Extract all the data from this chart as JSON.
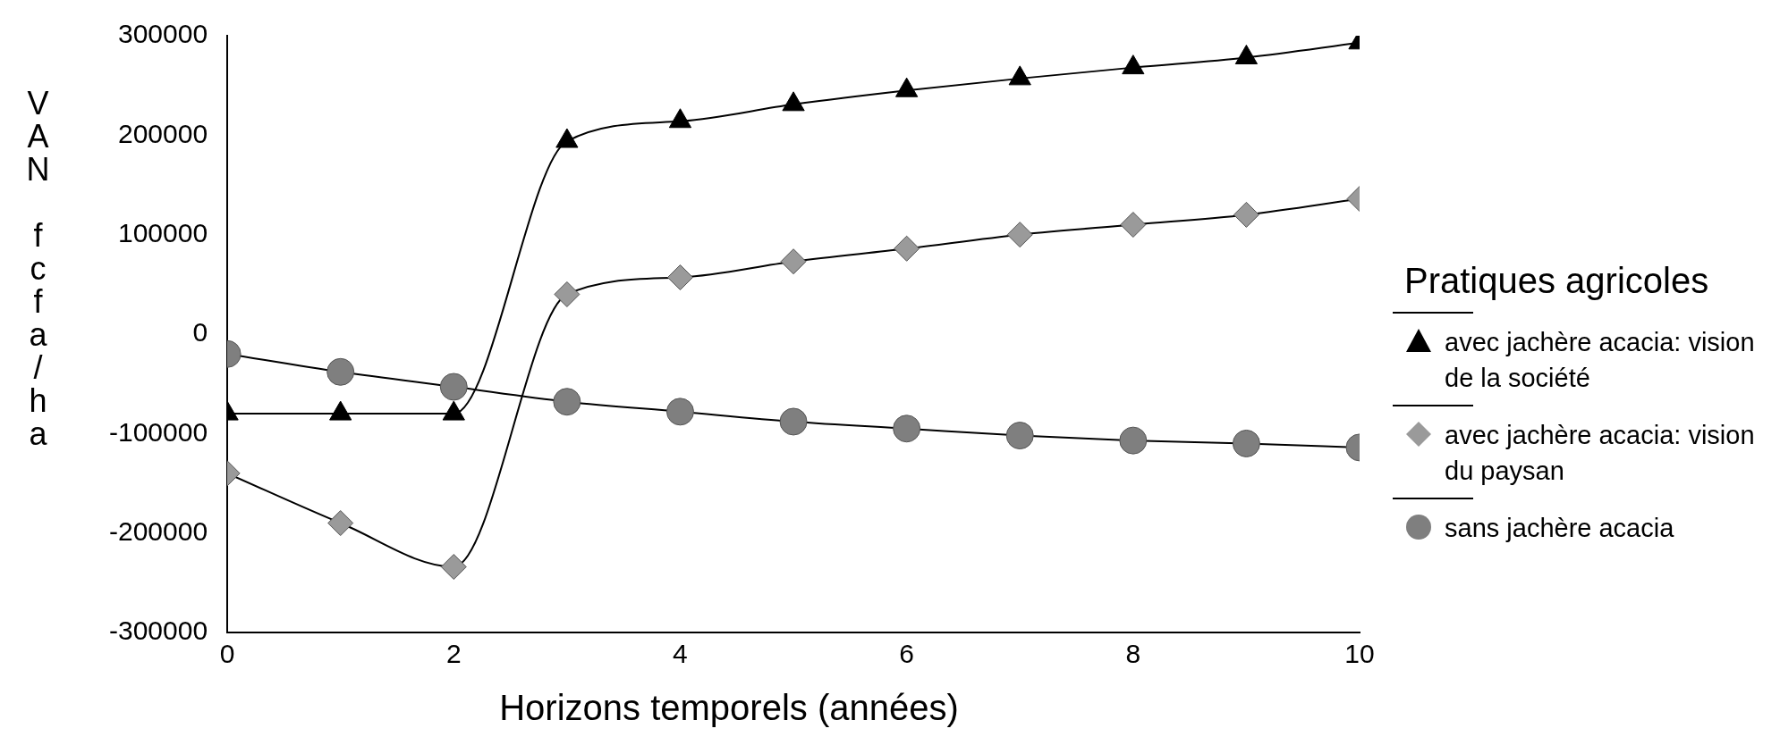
{
  "chart_data": {
    "type": "line",
    "xlabel": "Horizons temporels (années)",
    "ylabel": "VAN fcfa/ha",
    "legend_title": "Pratiques agricoles",
    "legend": "right",
    "grid": false,
    "x": [
      0,
      1,
      2,
      3,
      4,
      5,
      6,
      7,
      8,
      9,
      10
    ],
    "xlim": [
      0,
      10
    ],
    "xticks": [
      0,
      2,
      4,
      6,
      8,
      10
    ],
    "ylim": [
      -300000,
      300000
    ],
    "yticks": [
      -300000,
      -200000,
      -100000,
      0,
      100000,
      200000,
      300000
    ],
    "series": [
      {
        "name": "avec jachère acacia: vision de la société",
        "color": "#000000",
        "marker": "triangle",
        "values": [
          -80000,
          -80000,
          -80000,
          194000,
          214000,
          231000,
          245000,
          257000,
          268000,
          278000,
          293000
        ]
      },
      {
        "name": "avec jachère acacia: vision du paysan",
        "color": "#9a9a9a",
        "marker": "diamond",
        "values": [
          -140000,
          -190000,
          -234000,
          40000,
          57000,
          73000,
          86000,
          100000,
          110000,
          120000,
          136000
        ]
      },
      {
        "name": "sans jachère acacia",
        "color": "#7f7f7f",
        "marker": "circle",
        "values": [
          -20000,
          -38000,
          -53000,
          -68000,
          -78000,
          -88000,
          -95000,
          -102000,
          -107000,
          -110000,
          -114000
        ]
      }
    ]
  }
}
